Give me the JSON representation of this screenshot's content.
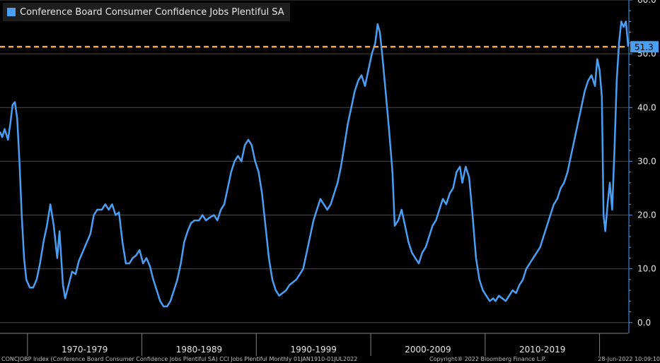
{
  "chart_data": {
    "type": "line",
    "title": "",
    "xlabel": "",
    "ylabel": "",
    "xlim": [
      1967.6,
      2022.5
    ],
    "ylim": [
      -2,
      60
    ],
    "yticks": [
      "0.0",
      "10.0",
      "20.0",
      "30.0",
      "40.0",
      "50.0",
      "60.0"
    ],
    "xtick_labels": [
      "1970-1979",
      "1980-1989",
      "1990-1999",
      "2000-2009",
      "2010-2019"
    ],
    "grid": true,
    "legend_position": "top-left",
    "series": [
      {
        "name": "Conference Board Consumer Confidence Jobs Plentiful SA",
        "color": "#4a9ff5",
        "points": [
          [
            1967.6,
            35.5
          ],
          [
            1967.8,
            34.5
          ],
          [
            1968.0,
            36
          ],
          [
            1968.3,
            34
          ],
          [
            1968.5,
            37
          ],
          [
            1968.7,
            40.5
          ],
          [
            1968.9,
            41
          ],
          [
            1969.1,
            38
          ],
          [
            1969.3,
            30
          ],
          [
            1969.5,
            20
          ],
          [
            1969.7,
            12
          ],
          [
            1969.9,
            8
          ],
          [
            1970.2,
            6.5
          ],
          [
            1970.5,
            6.5
          ],
          [
            1970.8,
            8
          ],
          [
            1971.1,
            11
          ],
          [
            1971.4,
            15
          ],
          [
            1971.7,
            18
          ],
          [
            1972.0,
            22
          ],
          [
            1972.3,
            18
          ],
          [
            1972.6,
            12
          ],
          [
            1972.8,
            17
          ],
          [
            1973.1,
            7
          ],
          [
            1973.3,
            4.5
          ],
          [
            1973.6,
            7
          ],
          [
            1973.9,
            9.5
          ],
          [
            1974.2,
            9
          ],
          [
            1974.5,
            11.5
          ],
          [
            1974.8,
            13
          ],
          [
            1975.2,
            15
          ],
          [
            1975.5,
            16.5
          ],
          [
            1975.8,
            20
          ],
          [
            1976.1,
            21
          ],
          [
            1976.5,
            21
          ],
          [
            1976.8,
            22
          ],
          [
            1977.1,
            21
          ],
          [
            1977.4,
            22
          ],
          [
            1977.7,
            20
          ],
          [
            1978.0,
            20.5
          ],
          [
            1978.3,
            15
          ],
          [
            1978.6,
            11
          ],
          [
            1978.9,
            11
          ],
          [
            1979.2,
            12
          ],
          [
            1979.5,
            12.5
          ],
          [
            1979.8,
            13.5
          ],
          [
            1980.1,
            11
          ],
          [
            1980.4,
            12
          ],
          [
            1980.7,
            10.5
          ],
          [
            1981.0,
            8
          ],
          [
            1981.3,
            6
          ],
          [
            1981.6,
            4
          ],
          [
            1981.9,
            3
          ],
          [
            1982.2,
            3
          ],
          [
            1982.5,
            4
          ],
          [
            1982.8,
            6
          ],
          [
            1983.1,
            8
          ],
          [
            1983.4,
            11
          ],
          [
            1983.7,
            15
          ],
          [
            1984.0,
            17
          ],
          [
            1984.3,
            18.5
          ],
          [
            1984.6,
            19
          ],
          [
            1985.0,
            19
          ],
          [
            1985.3,
            20
          ],
          [
            1985.6,
            19
          ],
          [
            1985.9,
            19.5
          ],
          [
            1986.3,
            20
          ],
          [
            1986.6,
            19
          ],
          [
            1986.9,
            21
          ],
          [
            1987.2,
            22
          ],
          [
            1987.5,
            25
          ],
          [
            1987.8,
            28
          ],
          [
            1988.1,
            30
          ],
          [
            1988.4,
            31
          ],
          [
            1988.7,
            30
          ],
          [
            1989.0,
            33
          ],
          [
            1989.3,
            34
          ],
          [
            1989.6,
            33
          ],
          [
            1989.9,
            30
          ],
          [
            1990.2,
            28
          ],
          [
            1990.5,
            24
          ],
          [
            1990.8,
            18
          ],
          [
            1991.1,
            12
          ],
          [
            1991.4,
            8
          ],
          [
            1991.7,
            6
          ],
          [
            1992.0,
            5
          ],
          [
            1992.3,
            5.5
          ],
          [
            1992.6,
            6
          ],
          [
            1992.9,
            7
          ],
          [
            1993.2,
            7.5
          ],
          [
            1993.5,
            8
          ],
          [
            1993.8,
            9
          ],
          [
            1994.1,
            10
          ],
          [
            1994.4,
            13
          ],
          [
            1994.7,
            16
          ],
          [
            1995.0,
            19
          ],
          [
            1995.3,
            21
          ],
          [
            1995.6,
            23
          ],
          [
            1995.9,
            22
          ],
          [
            1996.2,
            21
          ],
          [
            1996.5,
            22
          ],
          [
            1996.8,
            24
          ],
          [
            1997.1,
            26
          ],
          [
            1997.4,
            29
          ],
          [
            1997.7,
            33
          ],
          [
            1998.0,
            37
          ],
          [
            1998.3,
            40
          ],
          [
            1998.6,
            43
          ],
          [
            1998.9,
            45
          ],
          [
            1999.2,
            46
          ],
          [
            1999.5,
            44
          ],
          [
            1999.8,
            47
          ],
          [
            2000.1,
            50
          ],
          [
            2000.4,
            52
          ],
          [
            2000.6,
            55.5
          ],
          [
            2000.8,
            54
          ],
          [
            2001.0,
            50
          ],
          [
            2001.3,
            43
          ],
          [
            2001.6,
            36
          ],
          [
            2001.9,
            28
          ],
          [
            2002.1,
            18
          ],
          [
            2002.4,
            19
          ],
          [
            2002.7,
            21
          ],
          [
            2003.0,
            18
          ],
          [
            2003.3,
            15
          ],
          [
            2003.6,
            13
          ],
          [
            2003.9,
            12
          ],
          [
            2004.2,
            11
          ],
          [
            2004.5,
            13
          ],
          [
            2004.8,
            14
          ],
          [
            2005.1,
            16
          ],
          [
            2005.4,
            18
          ],
          [
            2005.7,
            19
          ],
          [
            2006.0,
            21
          ],
          [
            2006.3,
            23
          ],
          [
            2006.6,
            22
          ],
          [
            2006.9,
            24
          ],
          [
            2007.2,
            25
          ],
          [
            2007.5,
            28
          ],
          [
            2007.8,
            29
          ],
          [
            2008.0,
            26
          ],
          [
            2008.3,
            29
          ],
          [
            2008.6,
            27
          ],
          [
            2008.9,
            20
          ],
          [
            2009.2,
            12
          ],
          [
            2009.5,
            8
          ],
          [
            2009.8,
            6
          ],
          [
            2010.1,
            5
          ],
          [
            2010.4,
            4
          ],
          [
            2010.7,
            4.5
          ],
          [
            2010.9,
            4
          ],
          [
            2011.2,
            5
          ],
          [
            2011.5,
            4.5
          ],
          [
            2011.8,
            4
          ],
          [
            2012.1,
            5
          ],
          [
            2012.4,
            6
          ],
          [
            2012.7,
            5.5
          ],
          [
            2013.0,
            7
          ],
          [
            2013.3,
            8
          ],
          [
            2013.6,
            10
          ],
          [
            2013.9,
            11
          ],
          [
            2014.2,
            12
          ],
          [
            2014.5,
            13
          ],
          [
            2014.8,
            14
          ],
          [
            2015.1,
            16
          ],
          [
            2015.4,
            18
          ],
          [
            2015.7,
            20
          ],
          [
            2016.0,
            22
          ],
          [
            2016.3,
            23
          ],
          [
            2016.6,
            25
          ],
          [
            2016.9,
            26
          ],
          [
            2017.2,
            28
          ],
          [
            2017.5,
            31
          ],
          [
            2017.8,
            34
          ],
          [
            2018.1,
            37
          ],
          [
            2018.4,
            40
          ],
          [
            2018.7,
            43
          ],
          [
            2019.0,
            45
          ],
          [
            2019.3,
            46
          ],
          [
            2019.6,
            44
          ],
          [
            2019.8,
            49
          ],
          [
            2020.0,
            47
          ],
          [
            2020.2,
            42
          ],
          [
            2020.35,
            20
          ],
          [
            2020.5,
            17
          ],
          [
            2020.7,
            22
          ],
          [
            2020.9,
            26
          ],
          [
            2021.1,
            21
          ],
          [
            2021.3,
            32
          ],
          [
            2021.5,
            45
          ],
          [
            2021.7,
            52
          ],
          [
            2021.9,
            56
          ],
          [
            2022.1,
            55
          ],
          [
            2022.3,
            56
          ],
          [
            2022.5,
            51.3
          ]
        ]
      }
    ],
    "annotations": [
      {
        "type": "hline",
        "y": 51.3,
        "label": "51.3",
        "color": "#f2a64a"
      }
    ]
  },
  "footer": {
    "left": "CONCJOBP Index (Conference Board Consumer Confidence Jobs Plentiful SA) CCI Jobs Plentiful  Monthly 01JAN1910-01JUL2022",
    "center": "Copyright® 2022 Bloomberg Finance L.P.",
    "right": "28-Jun-2022 10:09:10"
  }
}
